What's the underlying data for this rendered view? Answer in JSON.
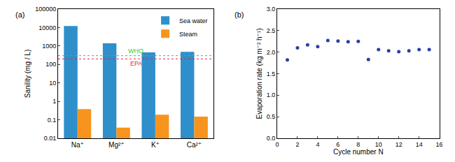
{
  "chart_data": [
    {
      "type": "bar",
      "title": "(a)",
      "y_label": "Sanility (mg / L)",
      "categories": [
        "Na⁺",
        "Mg²⁺",
        "K⁺",
        "Ca²⁺"
      ],
      "series": [
        {
          "name": "Sea water",
          "color": "#2f8fcb",
          "values": [
            12000,
            1400,
            450,
            480
          ]
        },
        {
          "name": "Steam",
          "color": "#f7941d",
          "values": [
            0.38,
            0.038,
            0.19,
            0.15
          ]
        }
      ],
      "log": "y",
      "ylim": [
        0.01,
        100000
      ],
      "yticks": [
        0.01,
        0.1,
        1,
        10,
        100,
        1000,
        10000,
        100000
      ],
      "legend": "top right",
      "reference_lines": [
        {
          "text": "WHO",
          "value": 300,
          "color": "#2ecc40",
          "line_style": "dotted"
        },
        {
          "text": "EPA",
          "value": 200,
          "color": "#e0245e",
          "line_style": "dotted"
        }
      ]
    },
    {
      "type": "scatter",
      "title": "(b)",
      "x_label": "Cycle number N",
      "y_label": "Evaporation rate (kg m⁻² h⁻¹)",
      "x": [
        1,
        2,
        3,
        4,
        5,
        6,
        7,
        8,
        9,
        10,
        11,
        12,
        13,
        14,
        15
      ],
      "values": [
        1.82,
        2.1,
        2.17,
        2.13,
        2.27,
        2.26,
        2.24,
        2.25,
        1.83,
        2.06,
        2.03,
        2.01,
        2.03,
        2.06,
        2.06
      ],
      "color": "#2b3fa6",
      "marker": "circle",
      "xlim": [
        0,
        16
      ],
      "xticks": [
        0,
        2,
        4,
        6,
        8,
        10,
        12,
        14,
        16
      ],
      "ylim": [
        0,
        3
      ],
      "yticks": [
        {
          "value": 0,
          "label": "0.0"
        },
        0.5,
        {
          "value": 1,
          "label": "1.0"
        },
        1.5,
        {
          "value": 2,
          "label": "2.0"
        },
        2.5,
        {
          "value": 3,
          "label": "3.0"
        }
      ]
    }
  ]
}
